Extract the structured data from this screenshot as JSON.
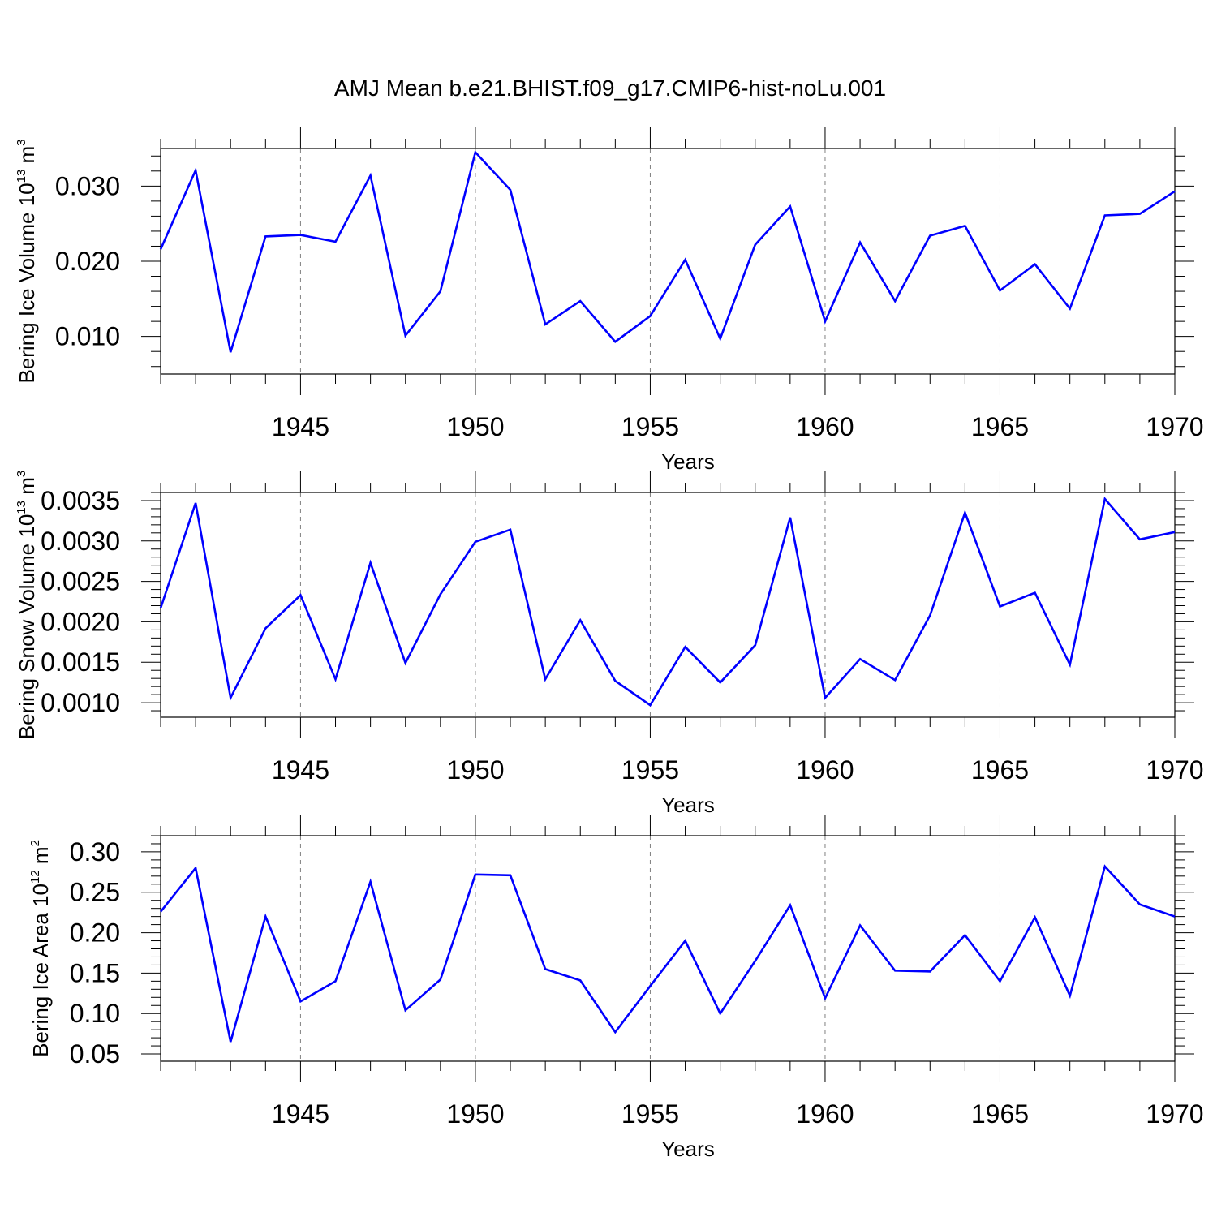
{
  "figure_title": "AMJ Mean b.e21.BHIST.f09_g17.CMIP6-hist-noLu.001",
  "colors": {
    "line": "#0000ff",
    "axis": "#000000",
    "grid": "#808080",
    "background": "#ffffff"
  },
  "chart_data": [
    {
      "type": "line",
      "panel": "ice-volume",
      "title": "",
      "xlabel": "Years",
      "ylabel": {
        "text": "Bering Ice Volume 10",
        "exponent": "13",
        "unit": " m",
        "unit_exponent": "3"
      },
      "xlim": [
        1941,
        1970
      ],
      "ylim": [
        0.005,
        0.035
      ],
      "x_ticks": [
        1945,
        1950,
        1955,
        1960,
        1965,
        1970
      ],
      "x_tick_labels": [
        "1945",
        "1950",
        "1955",
        "1960",
        "1965",
        "1970"
      ],
      "y_ticks": [
        0.01,
        0.02,
        0.03
      ],
      "y_tick_labels": [
        "0.010",
        "0.020",
        "0.030"
      ],
      "y_minor_step": 0.002,
      "x_gridlines": [
        1945,
        1950,
        1955,
        1960,
        1965
      ],
      "series": [
        {
          "name": "Bering Ice Volume",
          "x": [
            1941,
            1942,
            1943,
            1944,
            1945,
            1946,
            1947,
            1948,
            1949,
            1950,
            1951,
            1952,
            1953,
            1954,
            1955,
            1956,
            1957,
            1958,
            1959,
            1960,
            1961,
            1962,
            1963,
            1964,
            1965,
            1966,
            1967,
            1968,
            1969,
            1970
          ],
          "values": [
            0.0216,
            0.0321,
            0.0079,
            0.0233,
            0.0235,
            0.0226,
            0.0314,
            0.0101,
            0.016,
            0.0345,
            0.0295,
            0.0116,
            0.0147,
            0.0093,
            0.0127,
            0.0202,
            0.0097,
            0.0222,
            0.0273,
            0.012,
            0.0225,
            0.0147,
            0.0234,
            0.0247,
            0.0161,
            0.0196,
            0.0137,
            0.0261,
            0.0263,
            0.0293
          ]
        }
      ]
    },
    {
      "type": "line",
      "panel": "snow-volume",
      "title": "",
      "xlabel": "Years",
      "ylabel": {
        "text": "Bering Snow Volume 10",
        "exponent": "13",
        "unit": " m",
        "unit_exponent": "3"
      },
      "xlim": [
        1941,
        1970
      ],
      "ylim": [
        0.00082,
        0.0036
      ],
      "x_ticks": [
        1945,
        1950,
        1955,
        1960,
        1965,
        1970
      ],
      "x_tick_labels": [
        "1945",
        "1950",
        "1955",
        "1960",
        "1965",
        "1970"
      ],
      "y_ticks": [
        0.001,
        0.0015,
        0.002,
        0.0025,
        0.003,
        0.0035
      ],
      "y_tick_labels": [
        "0.0010",
        "0.0015",
        "0.0020",
        "0.0025",
        "0.0030",
        "0.0035"
      ],
      "y_minor_step": 0.0001,
      "x_gridlines": [
        1945,
        1950,
        1955,
        1960,
        1965
      ],
      "series": [
        {
          "name": "Bering Snow Volume",
          "x": [
            1941,
            1942,
            1943,
            1944,
            1945,
            1946,
            1947,
            1948,
            1949,
            1950,
            1951,
            1952,
            1953,
            1954,
            1955,
            1956,
            1957,
            1958,
            1959,
            1960,
            1961,
            1962,
            1963,
            1964,
            1965,
            1966,
            1967,
            1968,
            1969,
            1970
          ],
          "values": [
            0.00217,
            0.00347,
            0.00106,
            0.00192,
            0.00233,
            0.00129,
            0.00273,
            0.00149,
            0.00234,
            0.00299,
            0.00314,
            0.00129,
            0.00202,
            0.00127,
            0.00097,
            0.00169,
            0.00125,
            0.00171,
            0.00329,
            0.00106,
            0.00154,
            0.00128,
            0.00208,
            0.00335,
            0.00219,
            0.00236,
            0.00147,
            0.00352,
            0.00302,
            0.00311
          ]
        }
      ]
    },
    {
      "type": "line",
      "panel": "ice-area",
      "title": "",
      "xlabel": "Years",
      "ylabel": {
        "text": "Bering Ice Area 10",
        "exponent": "12",
        "unit": " m",
        "unit_exponent": "2"
      },
      "xlim": [
        1941,
        1970
      ],
      "ylim": [
        0.041,
        0.32
      ],
      "x_ticks": [
        1945,
        1950,
        1955,
        1960,
        1965,
        1970
      ],
      "x_tick_labels": [
        "1945",
        "1950",
        "1955",
        "1960",
        "1965",
        "1970"
      ],
      "y_ticks": [
        0.05,
        0.1,
        0.15,
        0.2,
        0.25,
        0.3
      ],
      "y_tick_labels": [
        "0.05",
        "0.10",
        "0.15",
        "0.20",
        "0.25",
        "0.30"
      ],
      "y_minor_step": 0.01,
      "x_gridlines": [
        1945,
        1950,
        1955,
        1960,
        1965
      ],
      "series": [
        {
          "name": "Bering Ice Area",
          "x": [
            1941,
            1942,
            1943,
            1944,
            1945,
            1946,
            1947,
            1948,
            1949,
            1950,
            1951,
            1952,
            1953,
            1954,
            1955,
            1956,
            1957,
            1958,
            1959,
            1960,
            1961,
            1962,
            1963,
            1964,
            1965,
            1966,
            1967,
            1968,
            1969,
            1970
          ],
          "values": [
            0.226,
            0.28,
            0.065,
            0.22,
            0.115,
            0.14,
            0.263,
            0.104,
            0.142,
            0.272,
            0.271,
            0.155,
            0.141,
            0.077,
            0.134,
            0.19,
            0.1,
            0.165,
            0.234,
            0.119,
            0.209,
            0.153,
            0.152,
            0.197,
            0.14,
            0.219,
            0.122,
            0.282,
            0.235,
            0.22
          ]
        }
      ]
    }
  ]
}
